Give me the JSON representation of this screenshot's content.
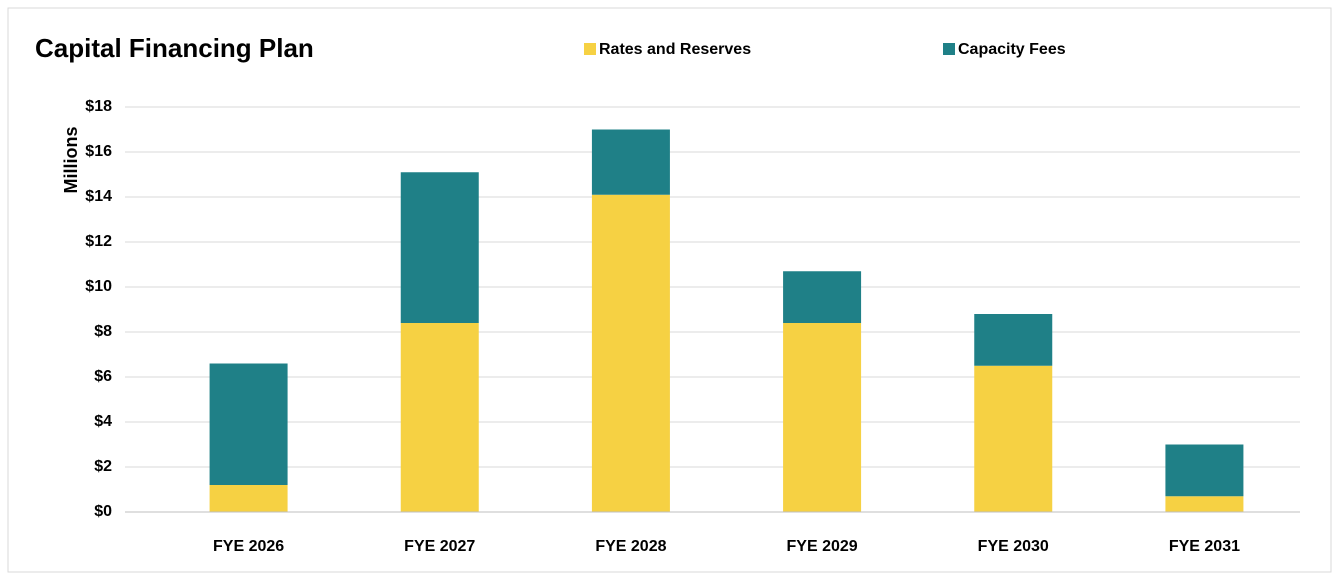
{
  "chart_data": {
    "type": "stacked_bar",
    "title": "Capital Financing Plan",
    "y_label": "Millions",
    "categories": [
      "FYE 2026",
      "FYE 2027",
      "FYE 2028",
      "FYE 2029",
      "FYE 2030",
      "FYE 2031"
    ],
    "series": [
      {
        "name": "Rates and Reserves",
        "color": "#F6D143",
        "values": [
          1.2,
          8.4,
          14.1,
          8.4,
          6.5,
          0.7
        ]
      },
      {
        "name": "Capacity Fees",
        "color": "#1F8087",
        "values": [
          5.4,
          6.7,
          2.9,
          2.3,
          2.3,
          2.3
        ]
      }
    ],
    "ylim": [
      0,
      18
    ],
    "yticks": [
      {
        "value": 0,
        "label": "$0"
      },
      {
        "value": 2,
        "label": "$2"
      },
      {
        "value": 4,
        "label": "$4"
      },
      {
        "value": 6,
        "label": "$6"
      },
      {
        "value": 8,
        "label": "$8"
      },
      {
        "value": 10,
        "label": "$10"
      },
      {
        "value": 12,
        "label": "$12"
      },
      {
        "value": 14,
        "label": "$14"
      },
      {
        "value": 16,
        "label": "$16"
      },
      {
        "value": 18,
        "label": "$18"
      }
    ],
    "grid": true
  }
}
